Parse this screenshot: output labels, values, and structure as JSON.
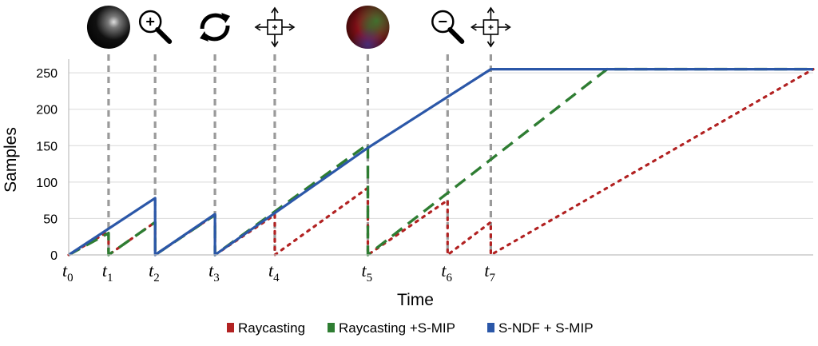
{
  "chart_data": {
    "type": "line",
    "xlabel": "Time",
    "ylabel": "Samples",
    "ylim": [
      0,
      260
    ],
    "yticks": [
      0,
      50,
      100,
      150,
      200,
      250
    ],
    "grid": "horizontal",
    "legend_position": "bottom",
    "xlim": [
      0,
      11.2
    ],
    "events": [
      {
        "base": "t",
        "sub": "0",
        "x": 0.0,
        "marker": false,
        "icon": "none"
      },
      {
        "base": "t",
        "sub": "1",
        "x": 0.6,
        "marker": true,
        "icon": "sphere-icon"
      },
      {
        "base": "t",
        "sub": "2",
        "x": 1.3,
        "marker": true,
        "icon": "zoom-in-icon"
      },
      {
        "base": "t",
        "sub": "3",
        "x": 2.2,
        "marker": true,
        "icon": "rotate-icon"
      },
      {
        "base": "t",
        "sub": "4",
        "x": 3.1,
        "marker": true,
        "icon": "pan-icon"
      },
      {
        "base": "t",
        "sub": "5",
        "x": 4.5,
        "marker": true,
        "icon": "colored-sphere-icon"
      },
      {
        "base": "t",
        "sub": "6",
        "x": 5.7,
        "marker": true,
        "icon": "zoom-out-icon"
      },
      {
        "base": "t",
        "sub": "7",
        "x": 6.35,
        "marker": true,
        "icon": "pan-icon"
      }
    ],
    "series": [
      {
        "name": "Raycasting",
        "color": "#b22222",
        "dash": "dotted",
        "points": [
          [
            0,
            0
          ],
          [
            0.6,
            32
          ],
          [
            0.6,
            0
          ],
          [
            1.3,
            45
          ],
          [
            1.3,
            0
          ],
          [
            2.2,
            55
          ],
          [
            2.2,
            0
          ],
          [
            3.1,
            55
          ],
          [
            3.1,
            0
          ],
          [
            4.5,
            92
          ],
          [
            4.5,
            0
          ],
          [
            5.7,
            75
          ],
          [
            5.7,
            0
          ],
          [
            6.35,
            45
          ],
          [
            6.35,
            0
          ],
          [
            11.2,
            255
          ]
        ]
      },
      {
        "name": "Raycasting +S-MIP",
        "color": "#2e7d32",
        "dash": "dashed",
        "points": [
          [
            0,
            0
          ],
          [
            0.6,
            30
          ],
          [
            0.6,
            0
          ],
          [
            1.3,
            45
          ],
          [
            1.3,
            0
          ],
          [
            2.2,
            55
          ],
          [
            2.2,
            0
          ],
          [
            4.5,
            152
          ],
          [
            4.5,
            0
          ],
          [
            8.1,
            255
          ],
          [
            11.2,
            255
          ]
        ]
      },
      {
        "name": "S-NDF + S-MIP",
        "color": "#2b57a8",
        "dash": "solid",
        "points": [
          [
            0,
            0
          ],
          [
            1.3,
            78
          ],
          [
            1.3,
            0
          ],
          [
            2.2,
            56
          ],
          [
            2.2,
            0
          ],
          [
            4.5,
            147
          ],
          [
            6.35,
            255
          ],
          [
            11.2,
            255
          ]
        ]
      }
    ]
  }
}
